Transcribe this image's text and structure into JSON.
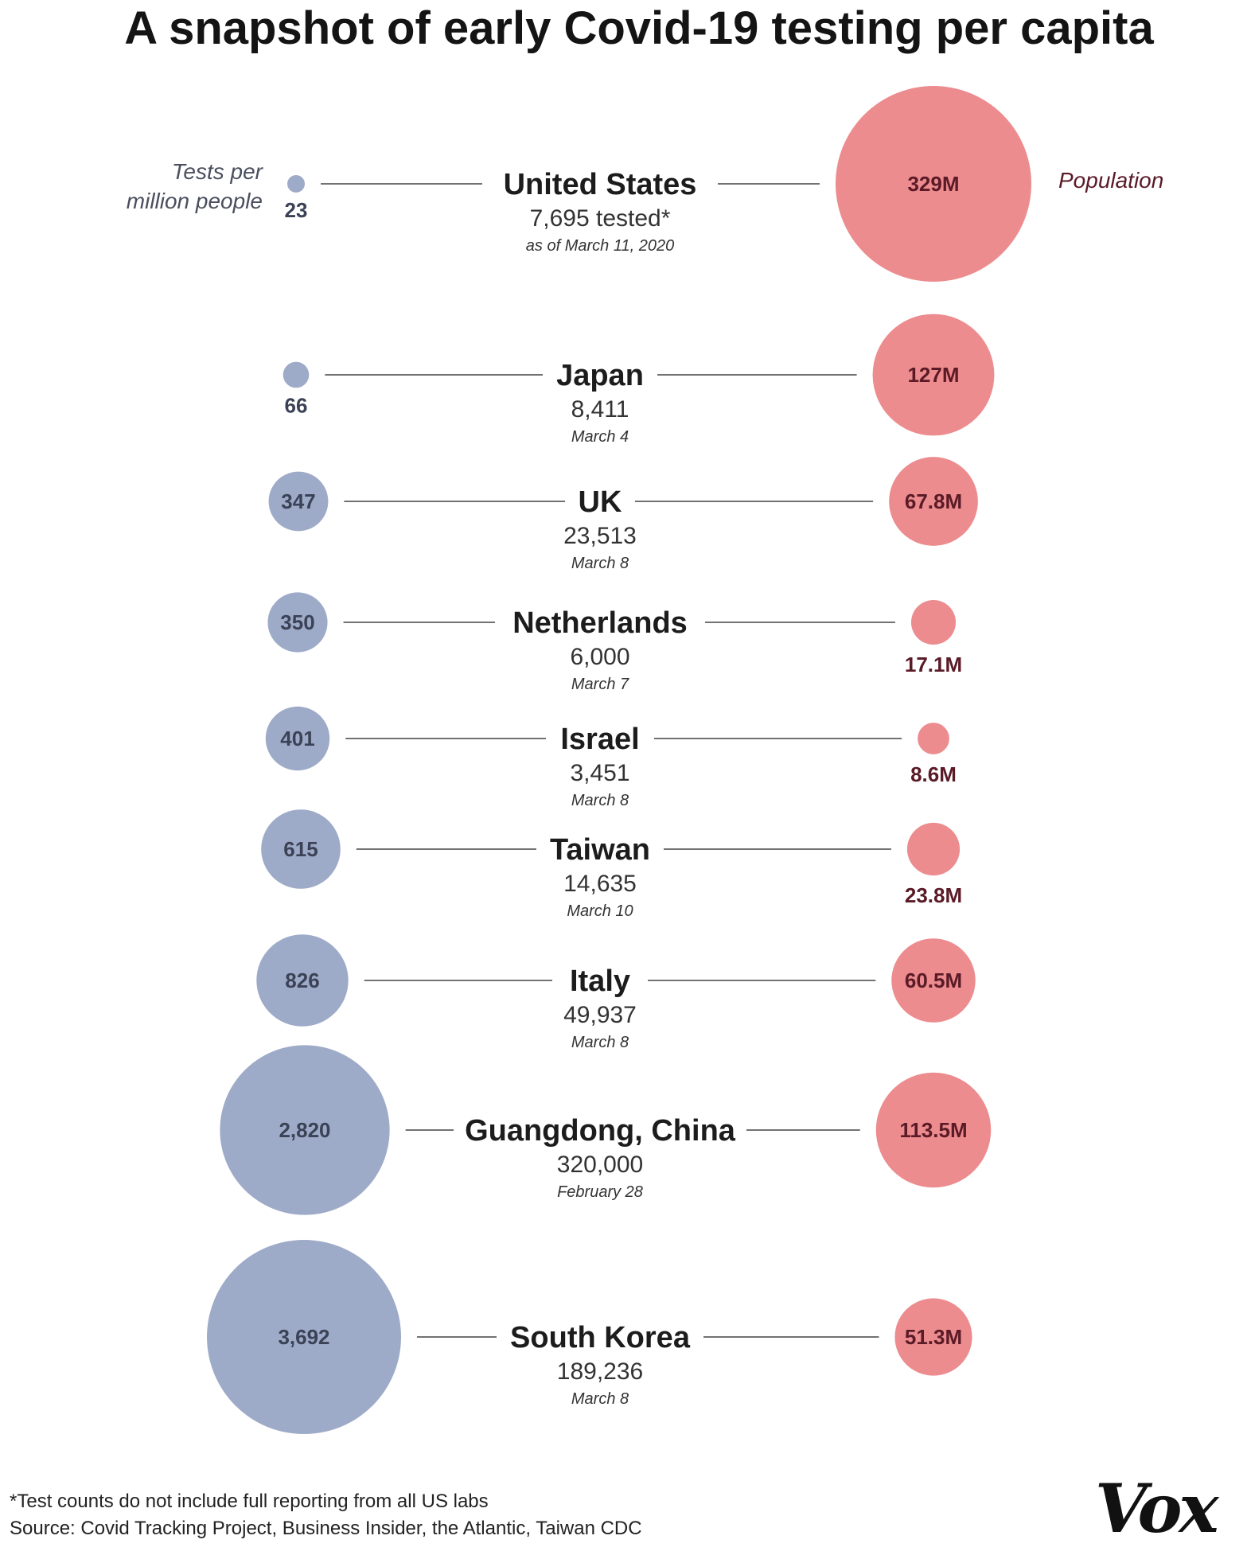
{
  "title": "A snapshot of early Covid-19 testing per capita",
  "left_label_line1": "Tests per",
  "left_label_line2": "million people",
  "right_label": "Population",
  "footnote": "*Test counts do not include full reporting from all US labs",
  "source": "Source: Covid Tracking Project, Business Insider, the Atlantic, Taiwan CDC",
  "logo": "Vox",
  "colors": {
    "tests_bubble": "#9eabc8",
    "tests_text": "#3b4256",
    "population_bubble": "#ec8c8f",
    "population_text": "#5a1a26",
    "connector": "#444444"
  },
  "chart_data": {
    "type": "bubble",
    "title": "A snapshot of early Covid-19 testing per capita",
    "series": [
      {
        "name": "Tests per million people"
      },
      {
        "name": "Population"
      }
    ],
    "rows": [
      {
        "country": "United  States",
        "tested": "7,695 tested*",
        "date": "as of March 11, 2020",
        "tests_per_million": 23,
        "tests_label": "23",
        "population_millions": 329,
        "population_label": "329M"
      },
      {
        "country": "Japan",
        "tested": "8,411",
        "date": "March 4",
        "tests_per_million": 66,
        "tests_label": "66",
        "population_millions": 127,
        "population_label": "127M"
      },
      {
        "country": "UK",
        "tested": "23,513",
        "date": "March 8",
        "tests_per_million": 347,
        "tests_label": "347",
        "population_millions": 67.8,
        "population_label": "67.8M"
      },
      {
        "country": "Netherlands",
        "tested": "6,000",
        "date": "March 7",
        "tests_per_million": 350,
        "tests_label": "350",
        "population_millions": 17.1,
        "population_label": "17.1M"
      },
      {
        "country": "Israel",
        "tested": "3,451",
        "date": "March 8",
        "tests_per_million": 401,
        "tests_label": "401",
        "population_millions": 8.6,
        "population_label": "8.6M"
      },
      {
        "country": "Taiwan",
        "tested": "14,635",
        "date": "March 10",
        "tests_per_million": 615,
        "tests_label": "615",
        "population_millions": 23.8,
        "population_label": "23.8M"
      },
      {
        "country": "Italy",
        "tested": "49,937",
        "date": "March 8",
        "tests_per_million": 826,
        "tests_label": "826",
        "population_millions": 60.5,
        "population_label": "60.5M"
      },
      {
        "country": "Guangdong, China",
        "tested": "320,000",
        "date": "February 28",
        "tests_per_million": 2820,
        "tests_label": "2,820",
        "population_millions": 113.5,
        "population_label": "113.5M"
      },
      {
        "country": "South Korea",
        "tested": "189,236",
        "date": "March 8",
        "tests_per_million": 3692,
        "tests_label": "3,692",
        "population_millions": 51.3,
        "population_label": "51.3M"
      }
    ]
  }
}
